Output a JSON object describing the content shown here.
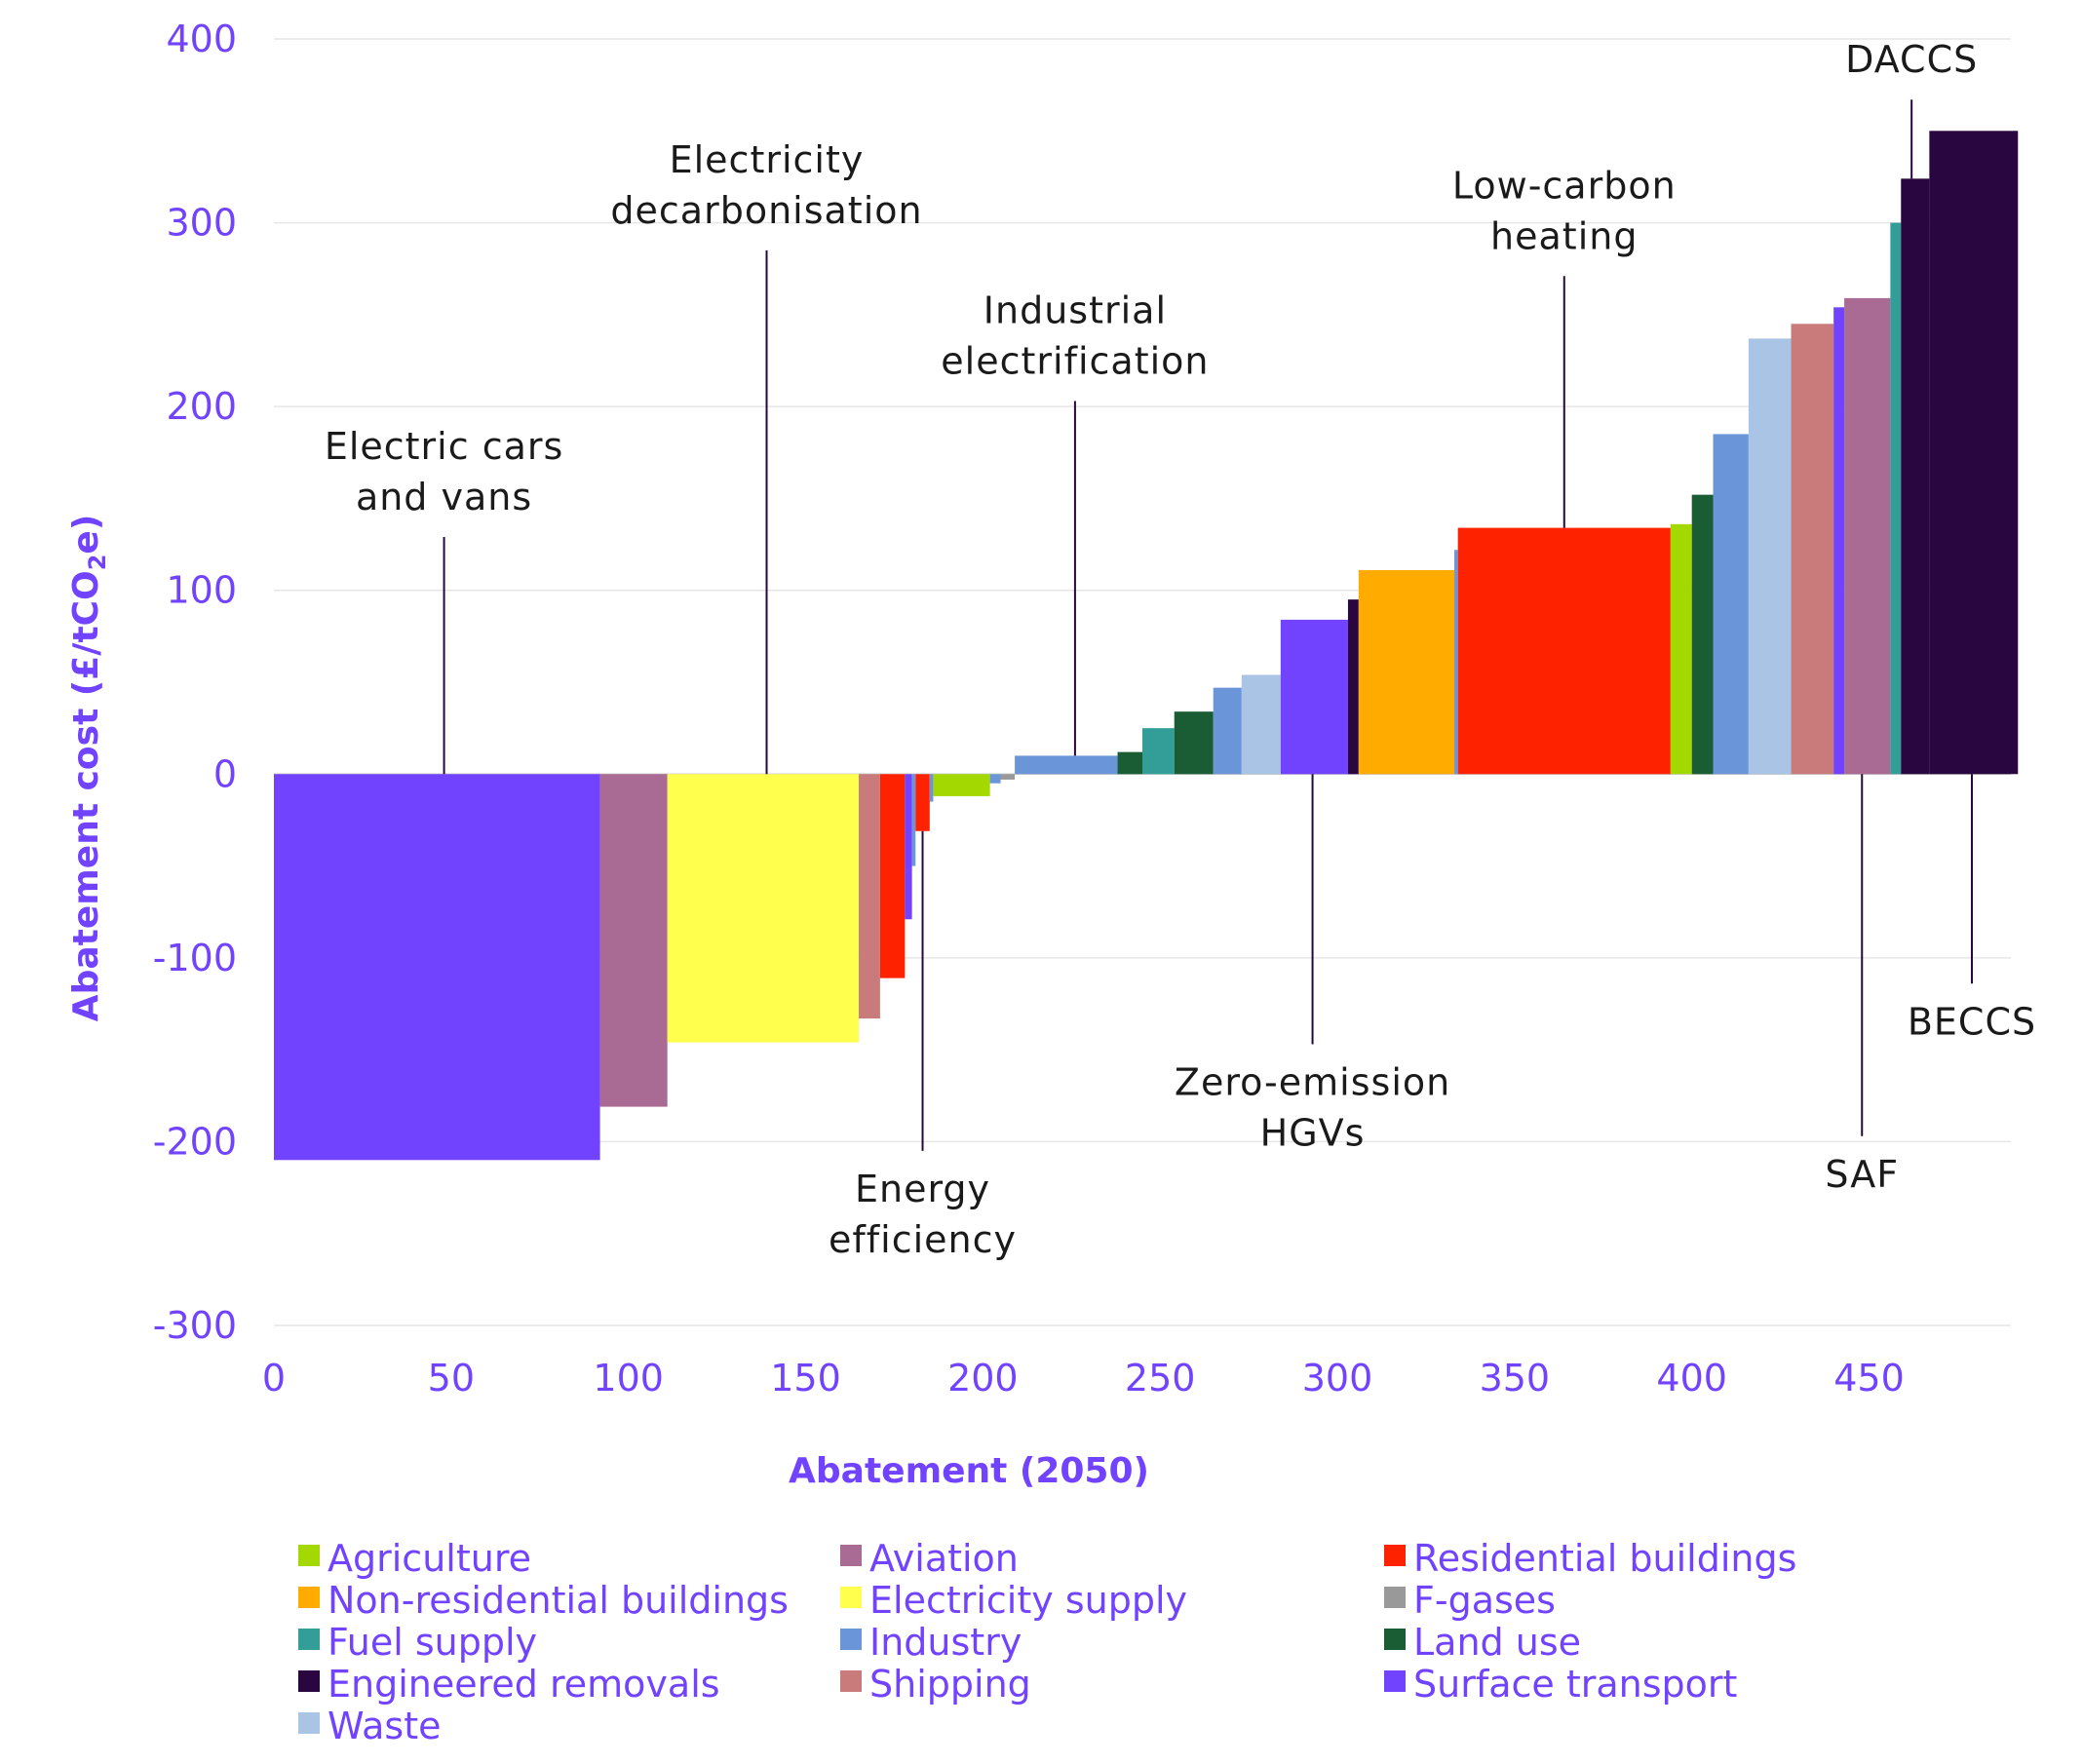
{
  "chart_data": {
    "type": "bar",
    "subtype": "marginal-abatement-cost-curve",
    "xlabel": "Abatement (2050)",
    "ylabel": "Abatement cost (£/tCO2e)",
    "ylabel_parts": {
      "before_sub": "Abatement cost (£/tCO",
      "sub": "2",
      "after_sub": "e)"
    },
    "xlim": [
      0,
      490
    ],
    "ylim": [
      -300,
      400
    ],
    "x_ticks": [
      0,
      50,
      100,
      150,
      200,
      250,
      300,
      350,
      400,
      450
    ],
    "y_ticks": [
      400,
      300,
      200,
      100,
      0,
      -100,
      -200,
      -300
    ],
    "grid": "horizontal",
    "sectors": [
      {
        "name": "Agriculture",
        "color": "#a3d900"
      },
      {
        "name": "Aviation",
        "color": "#a96a94"
      },
      {
        "name": "Residential buildings",
        "color": "#ff2200"
      },
      {
        "name": "Non-residential buildings",
        "color": "#ffab00"
      },
      {
        "name": "Electricity supply",
        "color": "#ffff4d"
      },
      {
        "name": "F-gases",
        "color": "#999999"
      },
      {
        "name": "Fuel supply",
        "color": "#339e98"
      },
      {
        "name": "Industry",
        "color": "#6a96d9"
      },
      {
        "name": "Land use",
        "color": "#1a5c33"
      },
      {
        "name": "Engineered removals",
        "color": "#29063f"
      },
      {
        "name": "Shipping",
        "color": "#c97a7a"
      },
      {
        "name": "Surface transport",
        "color": "#7243ff"
      },
      {
        "name": "Waste",
        "color": "#aac4e6"
      }
    ],
    "bars": [
      {
        "sector": "Surface transport",
        "x0": 0,
        "x1": 92,
        "value": -210
      },
      {
        "sector": "Aviation",
        "x0": 92,
        "x1": 111,
        "value": -181
      },
      {
        "sector": "Electricity supply",
        "x0": 111,
        "x1": 165,
        "value": -146
      },
      {
        "sector": "Shipping",
        "x0": 165,
        "x1": 171,
        "value": -133
      },
      {
        "sector": "Residential buildings",
        "x0": 171,
        "x1": 178,
        "value": -111
      },
      {
        "sector": "Surface transport",
        "x0": 178,
        "x1": 180,
        "value": -79
      },
      {
        "sector": "Industry",
        "x0": 180,
        "x1": 181,
        "value": -50
      },
      {
        "sector": "Residential buildings",
        "x0": 181,
        "x1": 185,
        "value": -31
      },
      {
        "sector": "Industry",
        "x0": 185,
        "x1": 186,
        "value": -15
      },
      {
        "sector": "Agriculture",
        "x0": 186,
        "x1": 202,
        "value": -12
      },
      {
        "sector": "Industry",
        "x0": 202,
        "x1": 205,
        "value": -5
      },
      {
        "sector": "F-gases",
        "x0": 205,
        "x1": 209,
        "value": -3
      },
      {
        "sector": "Industry",
        "x0": 209,
        "x1": 238,
        "value": 10
      },
      {
        "sector": "Land use",
        "x0": 238,
        "x1": 245,
        "value": 12
      },
      {
        "sector": "Fuel supply",
        "x0": 245,
        "x1": 254,
        "value": 25
      },
      {
        "sector": "Land use",
        "x0": 254,
        "x1": 265,
        "value": 34
      },
      {
        "sector": "Industry",
        "x0": 265,
        "x1": 273,
        "value": 47
      },
      {
        "sector": "Waste",
        "x0": 273,
        "x1": 284,
        "value": 54
      },
      {
        "sector": "Surface transport",
        "x0": 284,
        "x1": 303,
        "value": 84
      },
      {
        "sector": "Engineered removals",
        "x0": 303,
        "x1": 306,
        "value": 95
      },
      {
        "sector": "Non-residential buildings",
        "x0": 306,
        "x1": 333,
        "value": 111
      },
      {
        "sector": "Industry",
        "x0": 333,
        "x1": 334,
        "value": 122
      },
      {
        "sector": "Residential buildings",
        "x0": 334,
        "x1": 394,
        "value": 134
      },
      {
        "sector": "Agriculture",
        "x0": 394,
        "x1": 400,
        "value": 136
      },
      {
        "sector": "Land use",
        "x0": 400,
        "x1": 406,
        "value": 152
      },
      {
        "sector": "Industry",
        "x0": 406,
        "x1": 416,
        "value": 185
      },
      {
        "sector": "Waste",
        "x0": 416,
        "x1": 428,
        "value": 237
      },
      {
        "sector": "Shipping",
        "x0": 428,
        "x1": 440,
        "value": 245
      },
      {
        "sector": "Surface transport",
        "x0": 440,
        "x1": 443,
        "value": 254
      },
      {
        "sector": "Aviation",
        "x0": 443,
        "x1": 456,
        "value": 259
      },
      {
        "sector": "Fuel supply",
        "x0": 456,
        "x1": 459,
        "value": 300
      },
      {
        "sector": "Engineered removals",
        "x0": 459,
        "x1": 467,
        "value": 324
      },
      {
        "sector": "Engineered removals",
        "x0": 467,
        "x1": 492,
        "value": 350
      }
    ],
    "annotations": [
      {
        "lines": [
          "Electric cars",
          "and vans"
        ],
        "x": 48,
        "line_from": 0,
        "line_to": 129,
        "label_side": "above"
      },
      {
        "lines": [
          "Electricity",
          "decarbonisation"
        ],
        "x": 139,
        "line_from": 0,
        "line_to": 285,
        "label_side": "above"
      },
      {
        "lines": [
          "Industrial",
          "electrification"
        ],
        "x": 226,
        "line_from": 10,
        "line_to": 203,
        "label_side": "above"
      },
      {
        "lines": [
          "Low-carbon",
          "heating"
        ],
        "x": 364,
        "line_from": 134,
        "line_to": 271,
        "label_side": "above"
      },
      {
        "lines": [
          "DACCS"
        ],
        "x": 462,
        "line_from": 324,
        "line_to": 367,
        "label_side": "above"
      },
      {
        "lines": [
          "Energy",
          "efficiency"
        ],
        "x": 183,
        "line_from": -31,
        "line_to": -205,
        "label_side": "below"
      },
      {
        "lines": [
          "Zero-emission",
          "HGVs"
        ],
        "x": 293,
        "line_from": 0,
        "line_to": -147,
        "label_side": "below"
      },
      {
        "lines": [
          "SAF"
        ],
        "x": 448,
        "line_from": 0,
        "line_to": -197,
        "label_side": "below"
      },
      {
        "lines": [
          "BECCS"
        ],
        "x": 479,
        "line_from": 0,
        "line_to": -114,
        "label_side": "below"
      }
    ]
  }
}
